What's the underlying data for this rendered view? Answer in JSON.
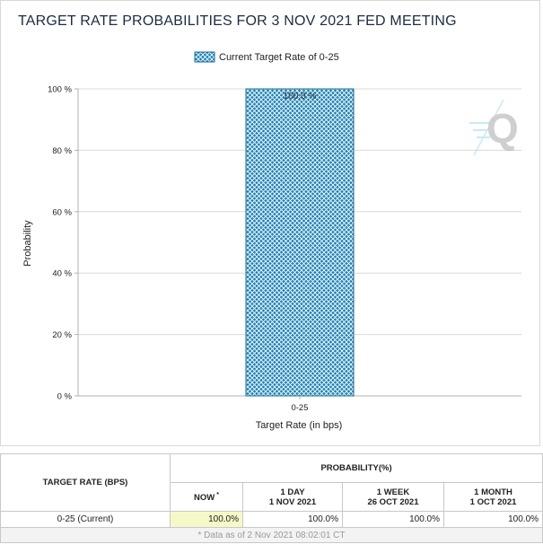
{
  "header": {
    "title": "TARGET RATE PROBABILITIES FOR 3 NOV 2021 FED MEETING"
  },
  "chart_data": {
    "type": "bar",
    "title": "TARGET RATE PROBABILITIES FOR 3 NOV 2021 FED MEETING",
    "categories": [
      "0-25"
    ],
    "series": [
      {
        "name": "Current Target Rate of 0-25",
        "values": [
          100.0
        ],
        "color": "#1a82b8"
      }
    ],
    "data_labels": [
      "100.0 %"
    ],
    "xlabel": "Target Rate (in bps)",
    "ylabel": "Probability",
    "ylim": [
      0,
      100
    ],
    "yticks": [
      "0 %",
      "20 %",
      "40 %",
      "60 %",
      "80 %",
      "100 %"
    ],
    "ytick_values": [
      0,
      20,
      40,
      60,
      80,
      100
    ],
    "grid": true,
    "legend": "top-center",
    "watermark_icon": "q-logo-icon"
  },
  "table": {
    "rate_header": "TARGET RATE (BPS)",
    "prob_header": "PROBABILITY(%)",
    "now_header": "NOW",
    "now_marker": "*",
    "day_header": "1 DAY",
    "day_date": "1 NOV 2021",
    "week_header": "1 WEEK",
    "week_date": "26 OCT 2021",
    "month_header": "1 MONTH",
    "month_date": "1 OCT 2021",
    "rows": [
      {
        "rate": "0-25 (Current)",
        "now": "100.0%",
        "day": "100.0%",
        "week": "100.0%",
        "month": "100.0%"
      }
    ],
    "footnote": "* Data as of 2 Nov 2021 08:02:01 CT"
  }
}
